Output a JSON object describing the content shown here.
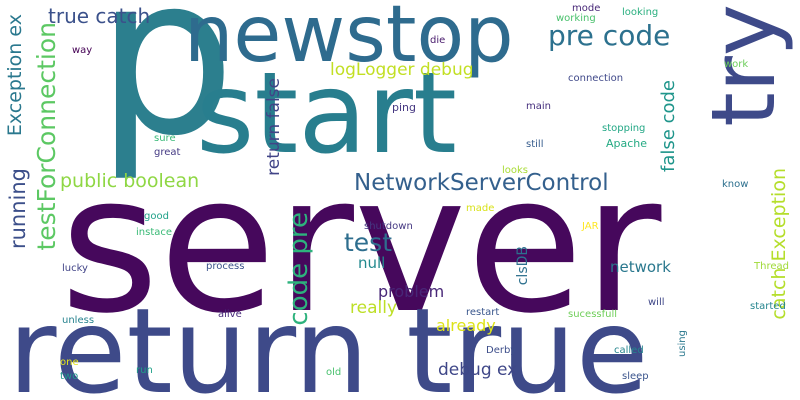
{
  "words": {
    "p": {
      "text": "p",
      "color": "#2c7f8e"
    },
    "server": {
      "text": "server",
      "color": "#46085c"
    },
    "start": {
      "text": "start",
      "color": "#287e8e"
    },
    "newstop": {
      "text": "newstop",
      "color": "#2e6b8e"
    },
    "return_true": {
      "text": "return true",
      "color": "#3e4a89"
    },
    "try": {
      "text": "try",
      "color": "#3e4a89"
    },
    "true_catch": {
      "text": "true catch",
      "color": "#3b518b"
    },
    "pre_code_top": {
      "text": "pre code",
      "color": "#2c718e"
    },
    "logLogger_debug": {
      "text": "logLogger debug",
      "color": "#c2df23"
    },
    "exception_ex": {
      "text": "Exception ex",
      "color": "#2a788e"
    },
    "testForConnection": {
      "text": "testForConnection",
      "color": "#5cc863"
    },
    "running": {
      "text": "running",
      "color": "#3c4f8a"
    },
    "public_boolean": {
      "text": "public boolean",
      "color": "#8fd744"
    },
    "return_false": {
      "text": "return false",
      "color": "#414487"
    },
    "code_pre": {
      "text": "code pre",
      "color": "#2db27d"
    },
    "networkservercontrol": {
      "text": "NetworkServerControl",
      "color": "#34608d"
    },
    "test": {
      "text": "test",
      "color": "#2e6e8e"
    },
    "false_code": {
      "text": "false code",
      "color": "#1f958b"
    },
    "catch_exception": {
      "text": "catch Exception",
      "color": "#b5de2b"
    },
    "null": {
      "text": "null",
      "color": "#23898e"
    },
    "problem": {
      "text": "problem",
      "color": "#482677"
    },
    "really": {
      "text": "really",
      "color": "#bddf26"
    },
    "already": {
      "text": "already",
      "color": "#dde318"
    },
    "debug_ex": {
      "text": "debug ex",
      "color": "#3f4788"
    },
    "network": {
      "text": "network",
      "color": "#2a788e"
    },
    "clsdb": {
      "text": "clsDB",
      "color": "#2d708e"
    },
    "way": {
      "text": "way",
      "color": "#440154"
    },
    "die": {
      "text": "die",
      "color": "#481a6c"
    },
    "mode": {
      "text": "mode",
      "color": "#482878"
    },
    "working": {
      "text": "working",
      "color": "#4ac16d"
    },
    "looking": {
      "text": "looking",
      "color": "#29af7f"
    },
    "connection": {
      "text": "connection",
      "color": "#3f4889"
    },
    "work": {
      "text": "work",
      "color": "#6ccd5a"
    },
    "ping": {
      "text": "ping",
      "color": "#453781"
    },
    "main": {
      "text": "main",
      "color": "#46307e"
    },
    "sure": {
      "text": "sure",
      "color": "#38b977"
    },
    "great": {
      "text": "great",
      "color": "#443983"
    },
    "still": {
      "text": "still",
      "color": "#365c8d"
    },
    "stopping": {
      "text": "stopping",
      "color": "#22a785"
    },
    "apache": {
      "text": "Apache",
      "color": "#24aa83"
    },
    "looks": {
      "text": "looks",
      "color": "#a8db34"
    },
    "know": {
      "text": "know",
      "color": "#2d708e"
    },
    "made": {
      "text": "made",
      "color": "#d8e219"
    },
    "good": {
      "text": "good",
      "color": "#1fa188"
    },
    "instace": {
      "text": "instace",
      "color": "#3aba76"
    },
    "shutdown": {
      "text": "shutdown",
      "color": "#453882"
    },
    "jar": {
      "text": "JAR",
      "color": "#fde725"
    },
    "lucky": {
      "text": "lucky",
      "color": "#414487"
    },
    "process": {
      "text": "process",
      "color": "#3b528b"
    },
    "thread": {
      "text": "Thread",
      "color": "#a0da39"
    },
    "will": {
      "text": "will",
      "color": "#3f4788"
    },
    "started": {
      "text": "started",
      "color": "#25858e"
    },
    "unless": {
      "text": "unless",
      "color": "#26828e"
    },
    "alive": {
      "text": "alive",
      "color": "#472a7a"
    },
    "restart": {
      "text": "restart",
      "color": "#39568c"
    },
    "sucessfull": {
      "text": "sucessfull",
      "color": "#6ece58"
    },
    "derby": {
      "text": "Derby",
      "color": "#3d4e8a"
    },
    "called": {
      "text": "called",
      "color": "#25858e"
    },
    "using": {
      "text": "using",
      "color": "#2a788e"
    },
    "one": {
      "text": "one",
      "color": "#e5e419"
    },
    "two": {
      "text": "two",
      "color": "#1f988b"
    },
    "run": {
      "text": "run",
      "color": "#1fa088"
    },
    "old": {
      "text": "old",
      "color": "#48c16e"
    },
    "sleep": {
      "text": "sleep",
      "color": "#3a548c"
    }
  }
}
